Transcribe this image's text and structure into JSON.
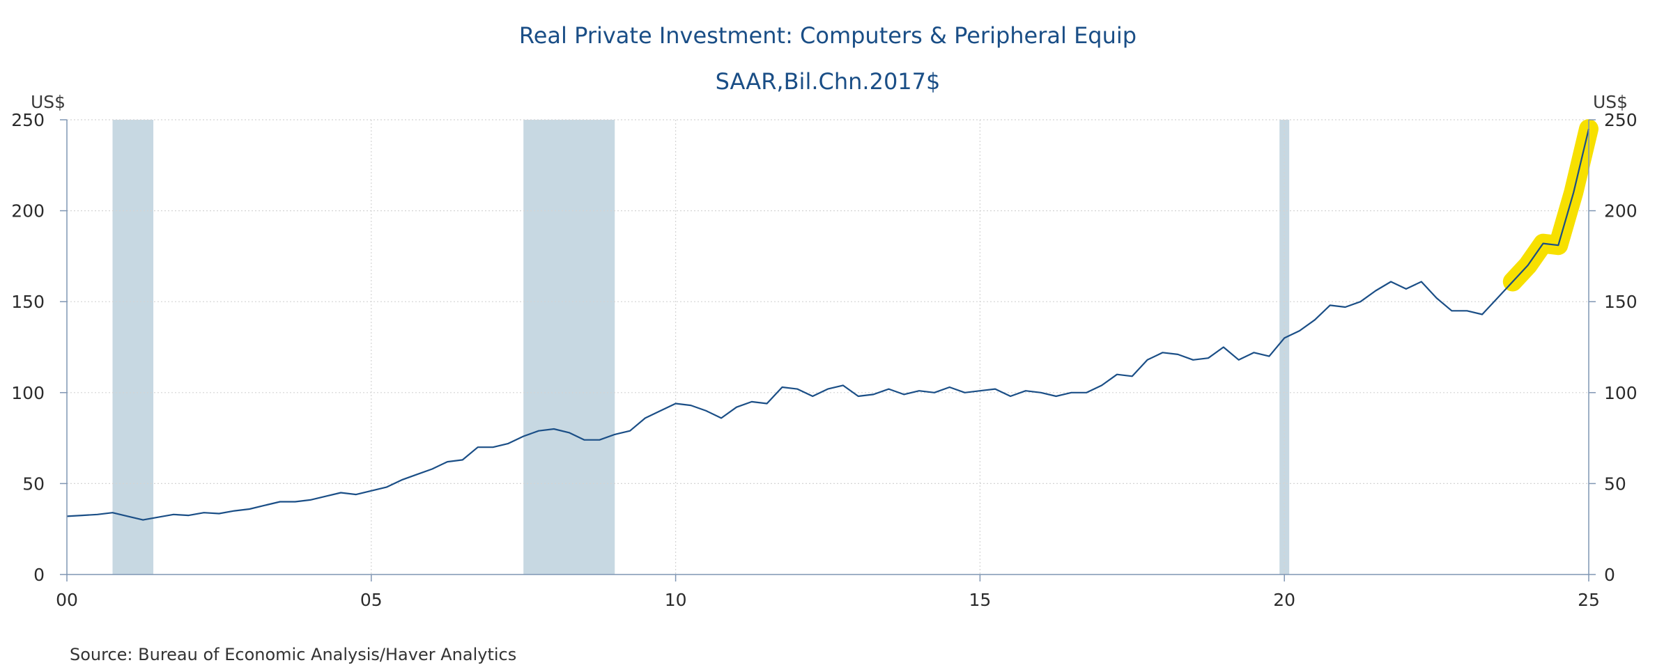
{
  "chart_data": {
    "type": "line",
    "title": "Real Private Investment: Computers & Peripheral Equip",
    "subtitle": "SAAR,Bil.Chn.2017$",
    "source": "Source:  Bureau of Economic Analysis/Haver Analytics",
    "y_unit_left": "US$",
    "y_unit_right": "US$",
    "ylim": [
      0,
      250
    ],
    "xlim": [
      2000.0,
      2025.0
    ],
    "y_ticks": [
      0,
      50,
      100,
      150,
      200,
      250
    ],
    "x_ticks": [
      {
        "value": 2000,
        "label": "00"
      },
      {
        "value": 2005,
        "label": "05"
      },
      {
        "value": 2010,
        "label": "10"
      },
      {
        "value": 2015,
        "label": "15"
      },
      {
        "value": 2020,
        "label": "20"
      },
      {
        "value": 2025,
        "label": "25"
      }
    ],
    "grid": true,
    "recessions": [
      {
        "start": 2000.75,
        "end": 2001.42
      },
      {
        "start": 2007.5,
        "end": 2009.0
      },
      {
        "start": 2019.92,
        "end": 2020.08
      }
    ],
    "highlight_from": 2023.75,
    "highlight_color": "#f7e000",
    "series": [
      {
        "name": "",
        "color": "#1a4e86",
        "x": [
          2000.0,
          2000.25,
          2000.5,
          2000.75,
          2001.0,
          2001.25,
          2001.5,
          2001.75,
          2002.0,
          2002.25,
          2002.5,
          2002.75,
          2003.0,
          2003.25,
          2003.5,
          2003.75,
          2004.0,
          2004.25,
          2004.5,
          2004.75,
          2005.0,
          2005.25,
          2005.5,
          2005.75,
          2006.0,
          2006.25,
          2006.5,
          2006.75,
          2007.0,
          2007.25,
          2007.5,
          2007.75,
          2008.0,
          2008.25,
          2008.5,
          2008.75,
          2009.0,
          2009.25,
          2009.5,
          2009.75,
          2010.0,
          2010.25,
          2010.5,
          2010.75,
          2011.0,
          2011.25,
          2011.5,
          2011.75,
          2012.0,
          2012.25,
          2012.5,
          2012.75,
          2013.0,
          2013.25,
          2013.5,
          2013.75,
          2014.0,
          2014.25,
          2014.5,
          2014.75,
          2015.0,
          2015.25,
          2015.5,
          2015.75,
          2016.0,
          2016.25,
          2016.5,
          2016.75,
          2017.0,
          2017.25,
          2017.5,
          2017.75,
          2018.0,
          2018.25,
          2018.5,
          2018.75,
          2019.0,
          2019.25,
          2019.5,
          2019.75,
          2020.0,
          2020.25,
          2020.5,
          2020.75,
          2021.0,
          2021.25,
          2021.5,
          2021.75,
          2022.0,
          2022.25,
          2022.5,
          2022.75,
          2023.0,
          2023.25,
          2023.5,
          2023.75,
          2024.0,
          2024.25,
          2024.5,
          2024.75,
          2025.0
        ],
        "values": [
          32,
          32.5,
          33,
          34,
          32,
          30,
          31.5,
          33,
          32.5,
          34,
          33.5,
          35,
          36,
          38,
          40,
          40,
          41,
          43,
          45,
          44,
          46,
          48,
          52,
          55,
          58,
          62,
          63,
          70,
          70,
          72,
          76,
          79,
          80,
          78,
          74,
          74,
          77,
          79,
          86,
          90,
          94,
          93,
          90,
          86,
          92,
          95,
          94,
          103,
          102,
          98,
          102,
          104,
          98,
          99,
          102,
          99,
          101,
          100,
          103,
          100,
          101,
          102,
          98,
          101,
          100,
          98,
          100,
          100,
          104,
          110,
          109,
          118,
          122,
          121,
          118,
          119,
          125,
          118,
          122,
          120,
          130,
          134,
          140,
          148,
          147,
          150,
          156,
          161,
          157,
          161,
          152,
          145,
          145,
          143,
          152,
          161,
          170,
          182,
          181,
          210,
          245
        ]
      }
    ]
  }
}
